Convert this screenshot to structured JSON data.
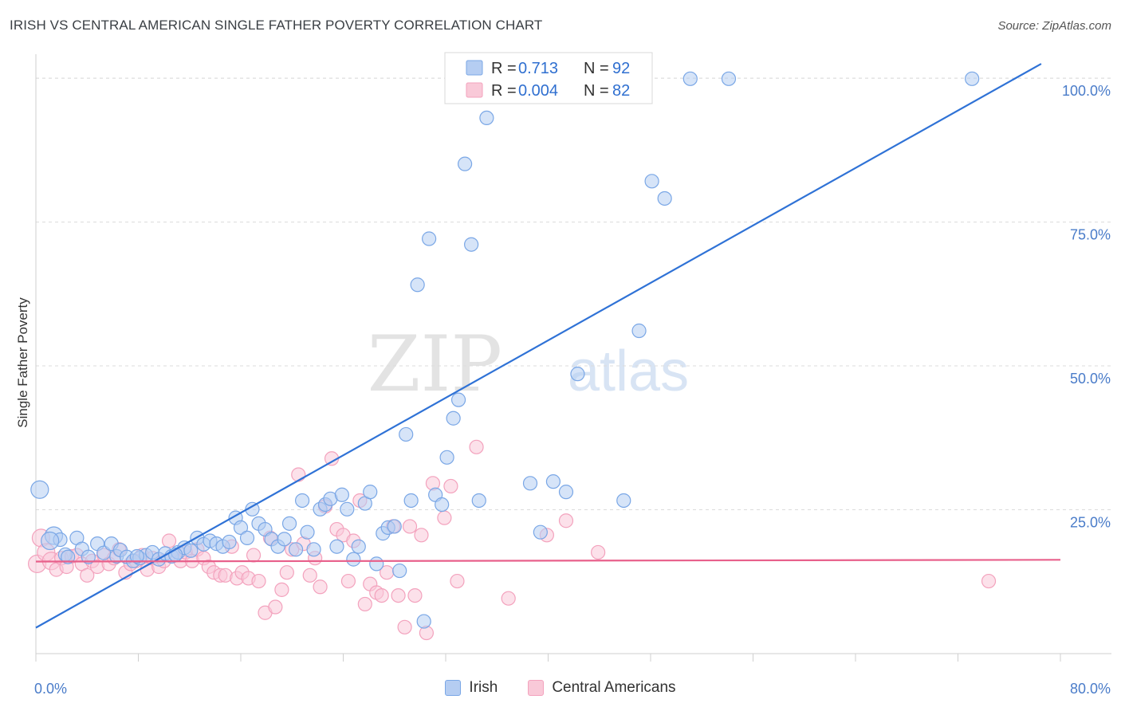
{
  "header": {
    "title": "IRISH VS CENTRAL AMERICAN SINGLE FATHER POVERTY CORRELATION CHART",
    "source": "Source: ZipAtlas.com"
  },
  "watermark": {
    "part1": "ZIP",
    "part2": "atlas"
  },
  "chart_data": {
    "type": "scatter",
    "title": "IRISH VS CENTRAL AMERICAN SINGLE FATHER POVERTY CORRELATION CHART",
    "xlabel": "",
    "ylabel": "Single Father Poverty",
    "xlim": [
      0,
      80
    ],
    "ylim": [
      0,
      105
    ],
    "x_tick_labels": [
      "0.0%",
      "80.0%"
    ],
    "y_ticks": [
      25,
      50,
      75,
      100
    ],
    "y_tick_labels": [
      "25.0%",
      "50.0%",
      "75.0%",
      "100.0%"
    ],
    "grid": true,
    "legend_position": "top-center",
    "legend": [
      {
        "r_label": "R = ",
        "r_value": "0.713",
        "n_label": "N = ",
        "n_value": "92"
      },
      {
        "r_label": "R = ",
        "r_value": "0.004",
        "n_label": "N = ",
        "n_value": "82"
      }
    ],
    "series": [
      {
        "name": "Irish",
        "color": "#7aa7e6",
        "line_color": "#2f72d6",
        "regression": {
          "x": [
            0,
            78.5
          ],
          "y": [
            4.5,
            102.5
          ]
        },
        "points": [
          [
            0.3,
            28.5
          ],
          [
            1.4,
            20.5
          ],
          [
            1.9,
            19.8
          ],
          [
            2.3,
            17.2
          ],
          [
            2.5,
            16.8
          ],
          [
            3.2,
            20.1
          ],
          [
            3.6,
            18.2
          ],
          [
            4.1,
            16.8
          ],
          [
            4.8,
            19.1
          ],
          [
            5.3,
            17.5
          ],
          [
            5.9,
            19.1
          ],
          [
            6.3,
            16.9
          ],
          [
            6.6,
            18.0
          ],
          [
            7.1,
            16.8
          ],
          [
            7.6,
            16.1
          ],
          [
            8.1,
            16.6
          ],
          [
            8.6,
            17.1
          ],
          [
            9.1,
            17.6
          ],
          [
            9.6,
            16.4
          ],
          [
            10.1,
            17.4
          ],
          [
            10.6,
            16.9
          ],
          [
            11.1,
            17.6
          ],
          [
            11.6,
            18.4
          ],
          [
            12.1,
            17.9
          ],
          [
            12.6,
            20.1
          ],
          [
            13.1,
            19.0
          ],
          [
            13.6,
            19.6
          ],
          [
            14.1,
            19.1
          ],
          [
            14.6,
            18.6
          ],
          [
            15.1,
            19.4
          ],
          [
            15.6,
            23.6
          ],
          [
            16.0,
            21.9
          ],
          [
            16.5,
            20.1
          ],
          [
            16.9,
            25.1
          ],
          [
            17.4,
            22.6
          ],
          [
            17.9,
            21.6
          ],
          [
            18.4,
            19.9
          ],
          [
            18.9,
            18.6
          ],
          [
            19.4,
            19.9
          ],
          [
            19.8,
            22.6
          ],
          [
            20.3,
            18.1
          ],
          [
            20.8,
            26.6
          ],
          [
            21.2,
            21.1
          ],
          [
            21.7,
            18.1
          ],
          [
            22.2,
            25.1
          ],
          [
            22.6,
            25.9
          ],
          [
            23.0,
            26.9
          ],
          [
            23.5,
            18.6
          ],
          [
            23.9,
            27.6
          ],
          [
            24.3,
            25.1
          ],
          [
            24.8,
            16.4
          ],
          [
            25.2,
            18.6
          ],
          [
            25.7,
            26.1
          ],
          [
            26.1,
            28.1
          ],
          [
            26.6,
            15.6
          ],
          [
            27.1,
            20.9
          ],
          [
            27.5,
            21.9
          ],
          [
            28.0,
            22.1
          ],
          [
            28.4,
            14.4
          ],
          [
            28.9,
            38.1
          ],
          [
            29.3,
            26.6
          ],
          [
            29.8,
            64.1
          ],
          [
            30.3,
            5.6
          ],
          [
            30.7,
            72.1
          ],
          [
            31.2,
            27.6
          ],
          [
            31.7,
            25.9
          ],
          [
            32.1,
            34.1
          ],
          [
            32.6,
            40.9
          ],
          [
            33.0,
            44.1
          ],
          [
            33.5,
            85.1
          ],
          [
            34.0,
            71.1
          ],
          [
            34.6,
            26.6
          ],
          [
            35.2,
            93.1
          ],
          [
            36.0,
            98.6
          ],
          [
            37.3,
            99.6
          ],
          [
            38.6,
            29.6
          ],
          [
            39.4,
            21.1
          ],
          [
            40.4,
            29.9
          ],
          [
            41.4,
            28.1
          ],
          [
            42.3,
            48.6
          ],
          [
            43.8,
            99.9
          ],
          [
            45.4,
            99.7
          ],
          [
            45.9,
            26.6
          ],
          [
            47.1,
            56.1
          ],
          [
            48.1,
            82.1
          ],
          [
            49.1,
            79.1
          ],
          [
            51.1,
            99.9
          ],
          [
            54.1,
            99.9
          ],
          [
            73.1,
            99.9
          ],
          [
            1.1,
            19.6
          ],
          [
            7.9,
            16.9
          ],
          [
            10.9,
            17.2
          ]
        ]
      },
      {
        "name": "Central Americans",
        "color": "#f3a2bd",
        "line_color": "#e8608b",
        "regression": {
          "x": [
            0,
            80
          ],
          "y": [
            16.0,
            16.3
          ]
        },
        "points": [
          [
            0.1,
            15.6
          ],
          [
            0.4,
            20.1
          ],
          [
            0.8,
            17.6
          ],
          [
            1.2,
            16.1
          ],
          [
            1.6,
            14.6
          ],
          [
            2.0,
            16.6
          ],
          [
            2.4,
            15.1
          ],
          [
            2.8,
            16.9
          ],
          [
            3.2,
            17.1
          ],
          [
            3.6,
            15.6
          ],
          [
            4.0,
            13.6
          ],
          [
            4.4,
            16.1
          ],
          [
            4.8,
            15.1
          ],
          [
            5.3,
            17.1
          ],
          [
            5.7,
            15.6
          ],
          [
            6.1,
            16.6
          ],
          [
            6.5,
            18.1
          ],
          [
            7.0,
            14.1
          ],
          [
            7.4,
            15.6
          ],
          [
            7.8,
            16.1
          ],
          [
            8.3,
            17.1
          ],
          [
            8.7,
            14.6
          ],
          [
            9.1,
            16.6
          ],
          [
            9.6,
            15.1
          ],
          [
            10.0,
            16.1
          ],
          [
            10.4,
            19.6
          ],
          [
            10.9,
            17.1
          ],
          [
            11.3,
            16.1
          ],
          [
            11.7,
            17.6
          ],
          [
            12.2,
            16.1
          ],
          [
            12.6,
            18.1
          ],
          [
            13.1,
            16.6
          ],
          [
            13.5,
            15.1
          ],
          [
            13.9,
            14.1
          ],
          [
            14.4,
            13.6
          ],
          [
            14.8,
            13.6
          ],
          [
            15.3,
            18.6
          ],
          [
            15.7,
            13.1
          ],
          [
            16.1,
            14.1
          ],
          [
            16.6,
            13.1
          ],
          [
            17.0,
            17.1
          ],
          [
            17.4,
            12.6
          ],
          [
            17.9,
            7.1
          ],
          [
            18.3,
            20.1
          ],
          [
            18.7,
            8.1
          ],
          [
            19.2,
            11.1
          ],
          [
            19.6,
            14.1
          ],
          [
            20.0,
            18.1
          ],
          [
            20.5,
            31.1
          ],
          [
            20.9,
            19.1
          ],
          [
            21.4,
            13.6
          ],
          [
            21.8,
            16.6
          ],
          [
            22.2,
            11.6
          ],
          [
            22.6,
            25.6
          ],
          [
            23.1,
            33.9
          ],
          [
            23.5,
            21.6
          ],
          [
            24.0,
            20.6
          ],
          [
            24.4,
            12.6
          ],
          [
            24.8,
            19.6
          ],
          [
            25.3,
            26.6
          ],
          [
            25.7,
            8.6
          ],
          [
            26.1,
            12.1
          ],
          [
            26.6,
            10.6
          ],
          [
            27.0,
            10.1
          ],
          [
            27.4,
            14.1
          ],
          [
            27.9,
            22.1
          ],
          [
            28.3,
            10.1
          ],
          [
            28.8,
            4.6
          ],
          [
            29.2,
            22.1
          ],
          [
            29.6,
            10.1
          ],
          [
            30.1,
            20.6
          ],
          [
            30.5,
            3.6
          ],
          [
            31.0,
            29.6
          ],
          [
            31.9,
            23.6
          ],
          [
            32.4,
            29.1
          ],
          [
            32.9,
            12.6
          ],
          [
            34.4,
            35.9
          ],
          [
            36.9,
            9.6
          ],
          [
            39.9,
            20.6
          ],
          [
            41.4,
            23.1
          ],
          [
            43.9,
            17.6
          ],
          [
            74.4,
            12.6
          ]
        ]
      }
    ]
  }
}
